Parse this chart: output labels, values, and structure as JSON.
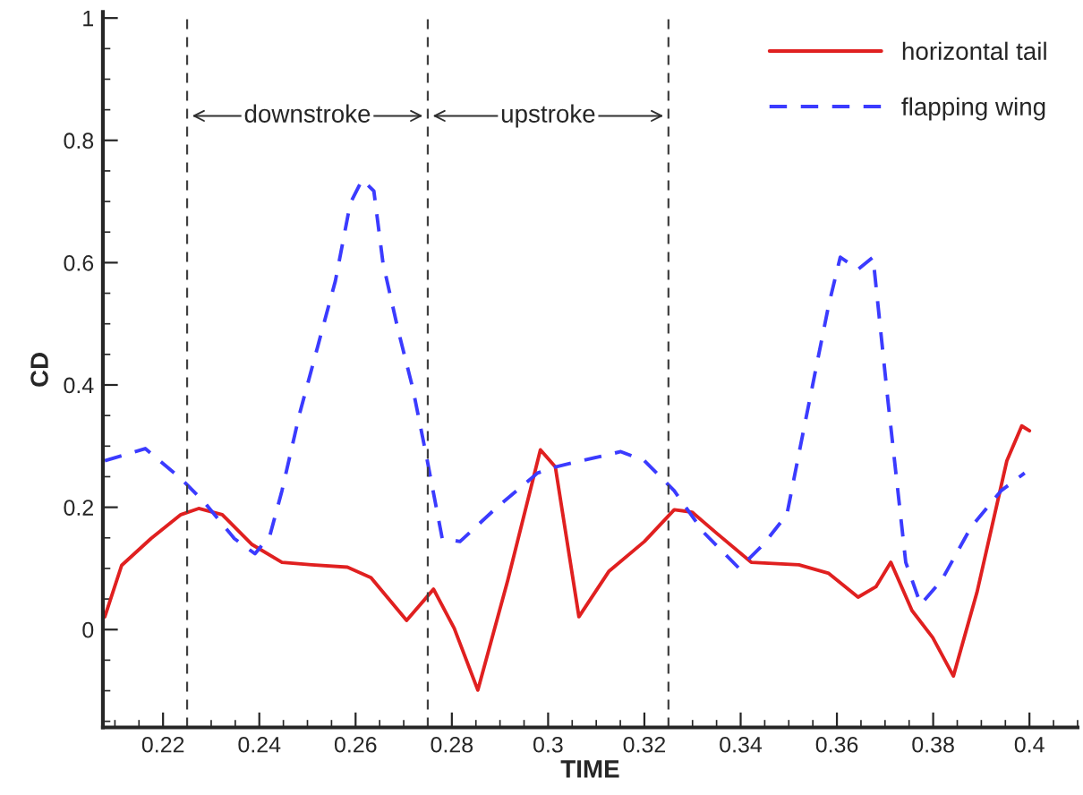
{
  "chart_data": {
    "type": "line",
    "xlabel": "TIME",
    "ylabel": "CD",
    "xlim": [
      0.2075,
      0.41
    ],
    "ylim": [
      -0.16,
      1.01
    ],
    "xticks": [
      0.22,
      0.24,
      0.26,
      0.28,
      0.3,
      0.32,
      0.34,
      0.36,
      0.38,
      0.4
    ],
    "yticks": [
      0,
      0.2,
      0.4,
      0.6,
      0.8,
      1
    ],
    "grid": false,
    "legend": "top right",
    "marker": "none",
    "ref_lines": [
      {
        "axis": "x",
        "value": 0.225,
        "color": "#404040",
        "line_style": "dashed"
      },
      {
        "axis": "x",
        "value": 0.275,
        "color": "#404040",
        "line_style": "dashed"
      },
      {
        "axis": "x",
        "value": 0.325,
        "color": "#404040",
        "line_style": "dashed"
      }
    ],
    "annotations": [
      {
        "text": "downstroke",
        "x": 0.225,
        "y": 0.84
      },
      {
        "text": "upstroke",
        "x": 0.275,
        "y": 0.84
      }
    ],
    "series": [
      {
        "name": "horizontal tail",
        "color": "#e02020",
        "line_style": "solid",
        "x": [
          0.2079,
          0.2114,
          0.2175,
          0.2237,
          0.2274,
          0.2323,
          0.2385,
          0.2447,
          0.2509,
          0.2583,
          0.2632,
          0.2706,
          0.2762,
          0.2805,
          0.2854,
          0.2916,
          0.2984,
          0.3015,
          0.3064,
          0.3126,
          0.32,
          0.3262,
          0.3299,
          0.3348,
          0.3422,
          0.3521,
          0.3583,
          0.3644,
          0.3681,
          0.3712,
          0.3756,
          0.3799,
          0.3842,
          0.3891,
          0.3953,
          0.3984,
          0.4
        ],
        "values": [
          0.021,
          0.105,
          0.149,
          0.188,
          0.198,
          0.188,
          0.139,
          0.11,
          0.106,
          0.102,
          0.085,
          0.015,
          0.066,
          0.002,
          -0.099,
          0.08,
          0.294,
          0.266,
          0.021,
          0.095,
          0.144,
          0.196,
          0.192,
          0.159,
          0.11,
          0.106,
          0.092,
          0.053,
          0.07,
          0.11,
          0.031,
          -0.013,
          -0.076,
          0.061,
          0.276,
          0.333,
          0.325
        ]
      },
      {
        "name": "flapping wing",
        "color": "#3b3bff",
        "line_style": "dashed",
        "x": [
          0.2079,
          0.2163,
          0.2237,
          0.2286,
          0.2348,
          0.2391,
          0.2422,
          0.2447,
          0.2484,
          0.2521,
          0.2558,
          0.2589,
          0.2614,
          0.2638,
          0.2657,
          0.2688,
          0.2719,
          0.2749,
          0.278,
          0.2817,
          0.2891,
          0.2978,
          0.3015,
          0.3151,
          0.32,
          0.3262,
          0.3323,
          0.3397,
          0.3447,
          0.3496,
          0.3533,
          0.3583,
          0.3607,
          0.3644,
          0.3675,
          0.3706,
          0.3743,
          0.3774,
          0.3817,
          0.3879,
          0.3941,
          0.399
        ],
        "values": [
          0.276,
          0.296,
          0.247,
          0.208,
          0.149,
          0.124,
          0.154,
          0.227,
          0.354,
          0.462,
          0.57,
          0.697,
          0.736,
          0.717,
          0.599,
          0.491,
          0.394,
          0.276,
          0.149,
          0.144,
          0.198,
          0.256,
          0.266,
          0.291,
          0.276,
          0.227,
          0.159,
          0.1,
          0.139,
          0.188,
          0.335,
          0.531,
          0.609,
          0.589,
          0.609,
          0.374,
          0.11,
          0.041,
          0.08,
          0.168,
          0.227,
          0.256
        ]
      }
    ]
  }
}
